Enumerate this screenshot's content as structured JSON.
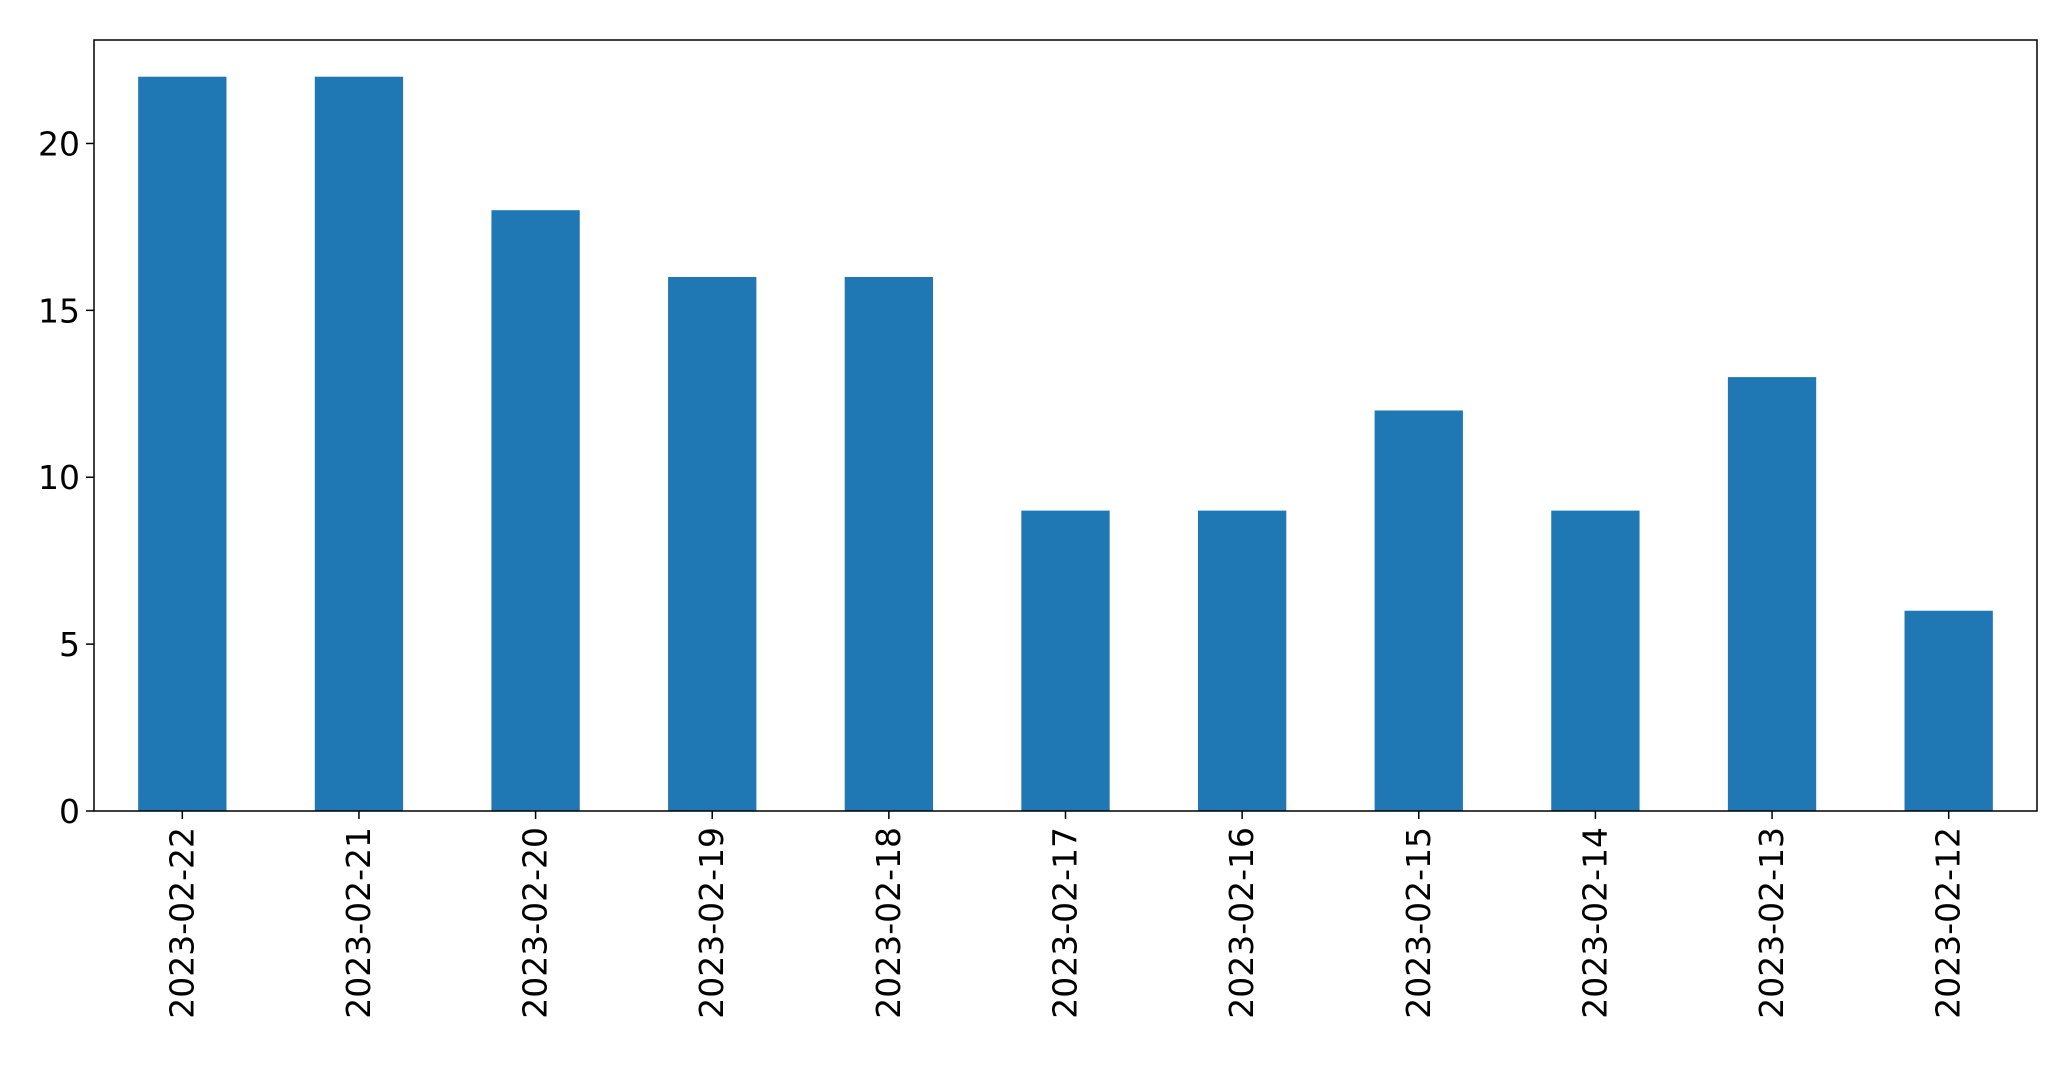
{
  "chart_data": {
    "type": "bar",
    "title": "",
    "xlabel": "",
    "ylabel": "",
    "categories": [
      "2023-02-22",
      "2023-02-21",
      "2023-02-20",
      "2023-02-19",
      "2023-02-18",
      "2023-02-17",
      "2023-02-16",
      "2023-02-15",
      "2023-02-14",
      "2023-02-13",
      "2023-02-12"
    ],
    "values": [
      22,
      22,
      18,
      16,
      16,
      9,
      9,
      12,
      9,
      13,
      6
    ],
    "ylim": [
      0,
      23.1
    ],
    "yticks": [
      0,
      5,
      10,
      15,
      20
    ],
    "bar_color": "#1f77b4",
    "grid": false,
    "legend": "none"
  }
}
